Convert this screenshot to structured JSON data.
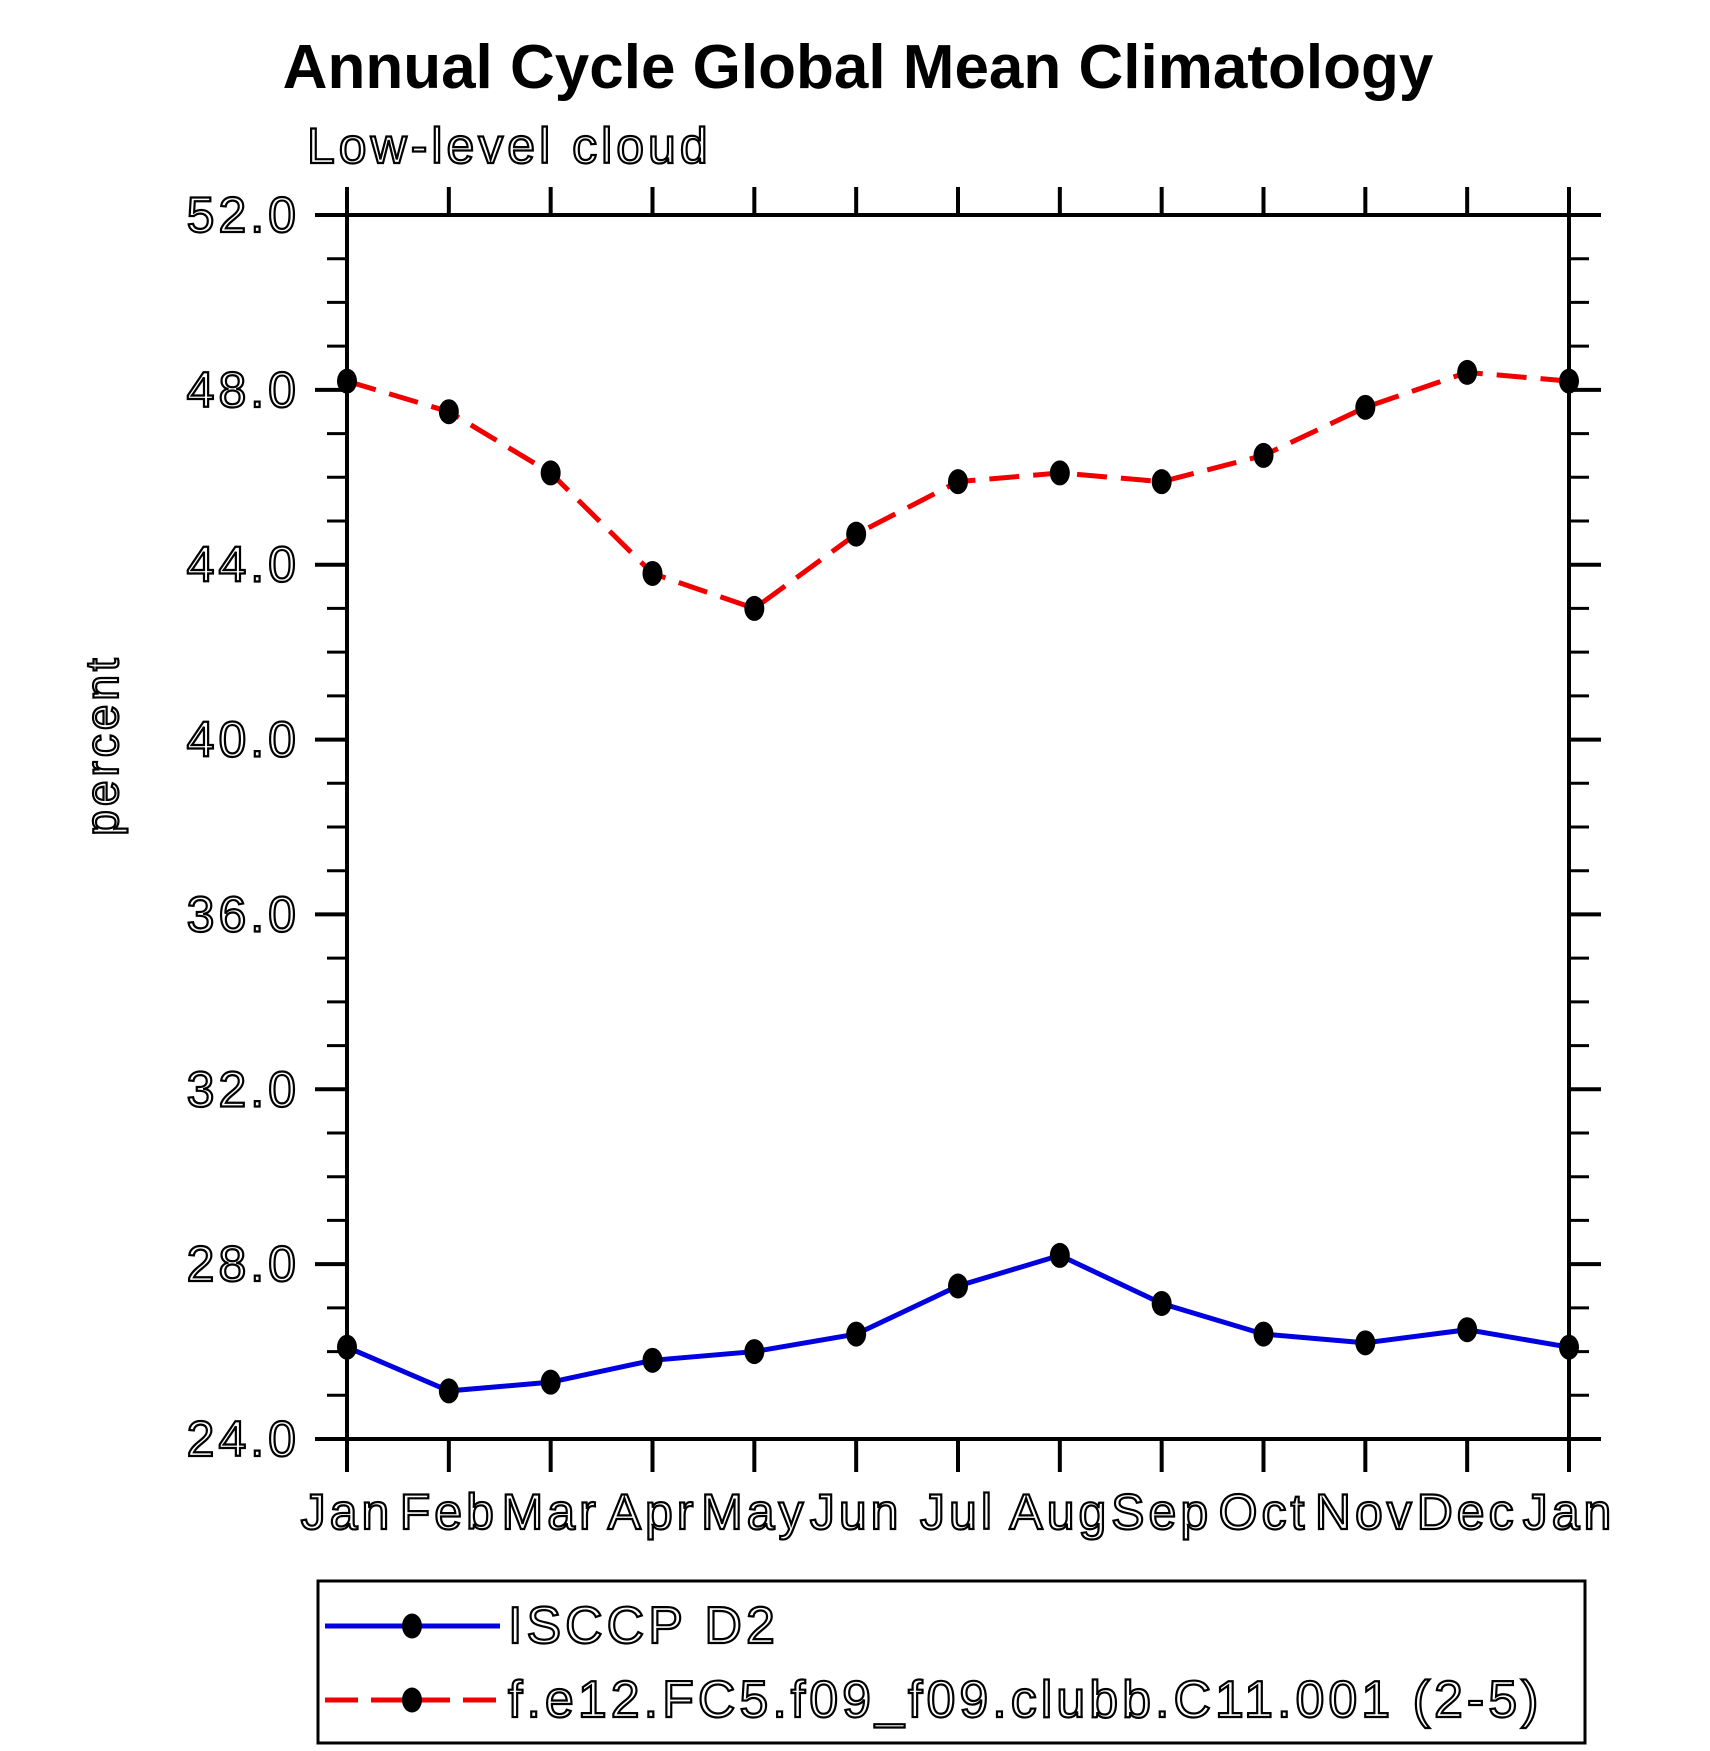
{
  "title": "Annual Cycle Global Mean Climatology",
  "subtitle": "Low-level cloud",
  "ylabel": "percent",
  "chart_data": {
    "type": "line",
    "x_categories": [
      "Jan",
      "Feb",
      "Mar",
      "Apr",
      "May",
      "Jun",
      "Jul",
      "Aug",
      "Sep",
      "Oct",
      "Nov",
      "Dec",
      "Jan"
    ],
    "xlabel": "",
    "ylabel": "percent",
    "ylim": [
      24.0,
      52.0
    ],
    "ytick_major": [
      52.0,
      48.0,
      44.0,
      40.0,
      36.0,
      32.0,
      28.0,
      24.0
    ],
    "ytick_labels": [
      "52.0",
      "48.0",
      "44.0",
      "40.0",
      "36.0",
      "32.0",
      "28.0",
      "24.0"
    ],
    "ytick_minor_step": 1.0,
    "grid": false,
    "legend_position": "bottom",
    "marker": "filled-circle",
    "marker_color": "#000000",
    "series": [
      {
        "name": "ISCCP D2",
        "color": "#0000e0",
        "line_style": "solid",
        "values": [
          26.1,
          25.1,
          25.3,
          25.8,
          26.0,
          26.4,
          27.5,
          28.2,
          27.1,
          26.4,
          26.2,
          26.5,
          26.1
        ]
      },
      {
        "name": "f.e12.FC5.f09_f09.clubb.C11.001 (2-5)",
        "color": "#f20000",
        "line_style": "dashed",
        "values": [
          48.2,
          47.5,
          46.1,
          43.8,
          43.0,
          44.7,
          45.9,
          46.1,
          45.9,
          46.5,
          47.6,
          48.4,
          48.2
        ]
      }
    ]
  }
}
